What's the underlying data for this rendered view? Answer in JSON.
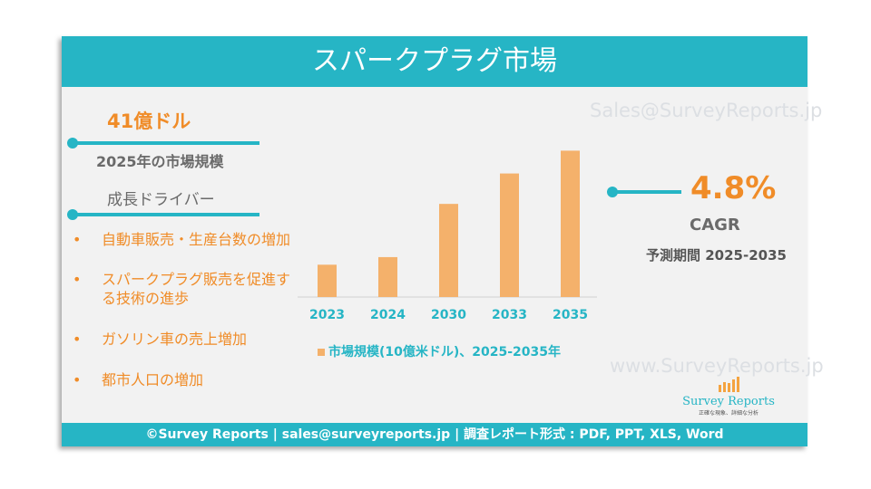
{
  "header": {
    "title": "スパークプラグ市場"
  },
  "left": {
    "market_size": "41億ドル",
    "market_size_label": "2025年の市場規模",
    "drivers_title": "成長ドライバー",
    "drivers": [
      "自動車販売・生産台数の増加",
      "スパークプラグ販売を促進する技術の進歩",
      "ガソリン車の売上増加",
      "都市人口の増加"
    ]
  },
  "right": {
    "cagr_value": "4.8%",
    "cagr_label": "CAGR",
    "forecast_period": "予測期間 2025-2035"
  },
  "watermarks": {
    "top": "Sales@SurveyReports.jp",
    "bottom": "www.SurveyReports.jp"
  },
  "logo": {
    "name": "Survey Reports",
    "tagline": "正確な現象、詳細な分析"
  },
  "footer": {
    "text": "©Survey Reports | sales@surveyreports.jp |  調査レポート形式 : PDF, PPT, XLS, Word"
  },
  "colors": {
    "accent": "#26b5c5",
    "bar": "#f4b16b",
    "orange": "#f08c28"
  },
  "chart_data": {
    "type": "bar",
    "categories": [
      "2023",
      "2024",
      "2030",
      "2033",
      "2035"
    ],
    "values": [
      3.6,
      3.8,
      5.2,
      6.0,
      6.6
    ],
    "legend": "市場規模(10億米ドル)、2025-2035年",
    "ylim": [
      2.75,
      6.8
    ],
    "xlabel": "",
    "ylabel": "",
    "grid": false
  }
}
